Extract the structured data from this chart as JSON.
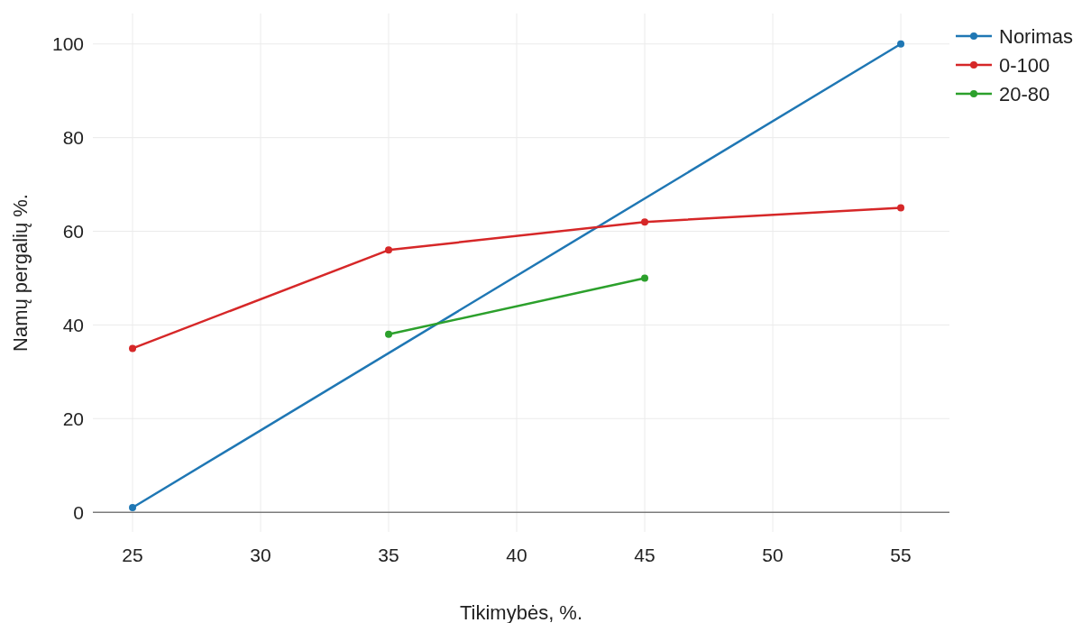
{
  "chart_data": {
    "type": "line",
    "xlabel": "Tikimybės, %.",
    "ylabel": "Namų pergalių %.",
    "xlim": [
      23.45,
      56.9
    ],
    "ylim": [
      -4.2,
      106.5
    ],
    "xticks": [
      25,
      30,
      35,
      40,
      45,
      50,
      55
    ],
    "yticks": [
      0,
      20,
      40,
      60,
      80,
      100
    ],
    "grid": true,
    "legend": "top right",
    "marker": "circle",
    "line_style": "solid",
    "series": [
      {
        "name": "Norimas",
        "color": "#1f77b4",
        "x": [
          25,
          55
        ],
        "values": [
          1,
          100
        ]
      },
      {
        "name": "0-100",
        "color": "#d62728",
        "x": [
          25,
          35,
          45,
          55
        ],
        "values": [
          35,
          56,
          62,
          65
        ]
      },
      {
        "name": "20-80",
        "color": "#2ca02c",
        "x": [
          35,
          45
        ],
        "values": [
          38,
          50
        ]
      }
    ]
  }
}
